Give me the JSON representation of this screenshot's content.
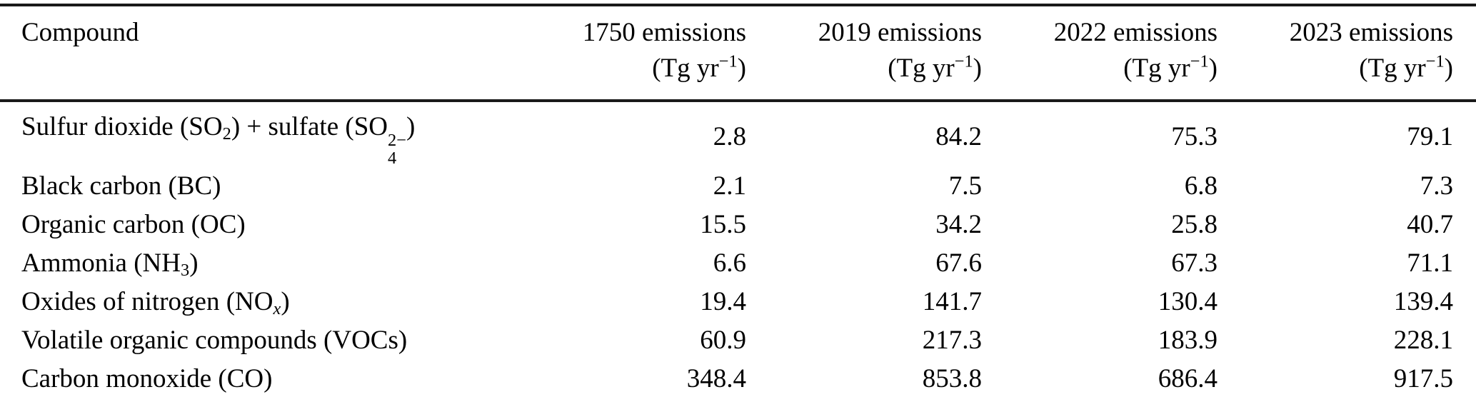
{
  "table": {
    "header": {
      "compound_label": "Compound",
      "columns": [
        {
          "title": "1750 emissions",
          "unit": "(Tg yr⁻¹)",
          "unit_prefix": "(Tg yr",
          "unit_exp": "−1",
          "unit_suffix": ")"
        },
        {
          "title": "2019 emissions",
          "unit": "(Tg yr⁻¹)",
          "unit_prefix": "(Tg yr",
          "unit_exp": "−1",
          "unit_suffix": ")"
        },
        {
          "title": "2022 emissions",
          "unit": "(Tg yr⁻¹)",
          "unit_prefix": "(Tg yr",
          "unit_exp": "−1",
          "unit_suffix": ")"
        },
        {
          "title": "2023 emissions",
          "unit": "(Tg yr⁻¹)",
          "unit_prefix": "(Tg yr",
          "unit_exp": "−1",
          "unit_suffix": ")"
        }
      ]
    },
    "rows": [
      {
        "name": "Sulfur dioxide (SO₂) + sulfate (SO₄²⁻)",
        "parts": {
          "t0": "Sulfur dioxide (SO",
          "sub0": "2",
          "t1": ") + sulfate (SO",
          "sup1": "2−",
          "sub1": "4",
          "t2": ")"
        },
        "values": [
          "2.8",
          "84.2",
          "75.3",
          "79.1"
        ]
      },
      {
        "name": "Black carbon (BC)",
        "values": [
          "2.1",
          "7.5",
          "6.8",
          "7.3"
        ]
      },
      {
        "name": "Organic carbon (OC)",
        "values": [
          "15.5",
          "34.2",
          "25.8",
          "40.7"
        ]
      },
      {
        "name": "Ammonia (NH₃)",
        "parts": {
          "t0": "Ammonia (NH",
          "sub0": "3",
          "t1": ")"
        },
        "values": [
          "6.6",
          "67.6",
          "67.3",
          "71.1"
        ]
      },
      {
        "name": "Oxides of nitrogen (NOₓ)",
        "parts": {
          "t0": "Oxides of nitrogen (NO",
          "sub0": "x",
          "t1": ")"
        },
        "values": [
          "19.4",
          "141.7",
          "130.4",
          "139.4"
        ]
      },
      {
        "name": "Volatile organic compounds (VOCs)",
        "values": [
          "60.9",
          "217.3",
          "183.9",
          "228.1"
        ]
      },
      {
        "name": "Carbon monoxide (CO)",
        "values": [
          "348.4",
          "853.8",
          "686.4",
          "917.5"
        ]
      }
    ]
  },
  "colors": {
    "text": "#000000",
    "rule": "#1a1a1a",
    "background": "#ffffff"
  },
  "chart_data": {
    "type": "table",
    "title": "",
    "categories": [
      "Sulfur dioxide (SO2) + sulfate (SO4 2−)",
      "Black carbon (BC)",
      "Organic carbon (OC)",
      "Ammonia (NH3)",
      "Oxides of nitrogen (NOx)",
      "Volatile organic compounds (VOCs)",
      "Carbon monoxide (CO)"
    ],
    "series": [
      {
        "name": "1750 emissions (Tg yr−1)",
        "values": [
          2.8,
          2.1,
          15.5,
          6.6,
          19.4,
          60.9,
          348.4
        ]
      },
      {
        "name": "2019 emissions (Tg yr−1)",
        "values": [
          84.2,
          7.5,
          34.2,
          67.6,
          141.7,
          217.3,
          853.8
        ]
      },
      {
        "name": "2022 emissions (Tg yr−1)",
        "values": [
          75.3,
          6.8,
          25.8,
          67.3,
          130.4,
          183.9,
          686.4
        ]
      },
      {
        "name": "2023 emissions (Tg yr−1)",
        "values": [
          79.1,
          7.3,
          40.7,
          71.1,
          139.4,
          228.1,
          917.5
        ]
      }
    ]
  }
}
